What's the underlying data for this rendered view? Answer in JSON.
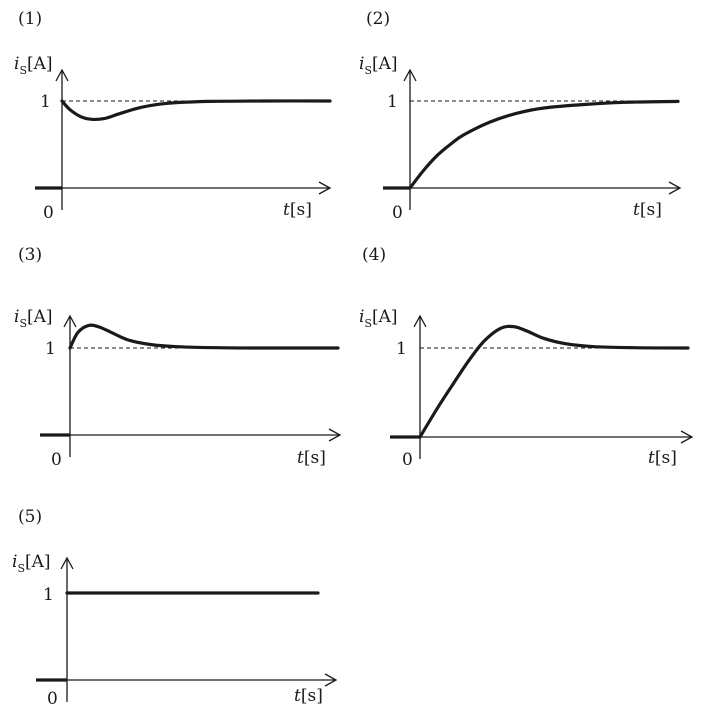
{
  "panels": [
    {
      "label": "(1)",
      "y_var": "i",
      "y_sub": "S",
      "y_unit": "[A]",
      "x_var": "t",
      "x_unit": "[s]",
      "origin_label": "0",
      "ref_label": "1",
      "ref_value": 1,
      "response": "starts at 1, dips below 1, then recovers to 1",
      "points": [
        [
          0,
          1.0
        ],
        [
          0.03,
          0.9
        ],
        [
          0.07,
          0.82
        ],
        [
          0.11,
          0.79
        ],
        [
          0.16,
          0.8
        ],
        [
          0.22,
          0.86
        ],
        [
          0.3,
          0.93
        ],
        [
          0.4,
          0.975
        ],
        [
          0.55,
          0.995
        ],
        [
          0.75,
          1.0
        ],
        [
          1.0,
          1.0
        ]
      ]
    },
    {
      "label": "(2)",
      "y_var": "i",
      "y_sub": "S",
      "y_unit": "[A]",
      "x_var": "t",
      "x_unit": "[s]",
      "origin_label": "0",
      "ref_label": "1",
      "ref_value": 1,
      "response": "rises from 0 and approaches 1 exponentially",
      "points": [
        [
          0,
          0
        ],
        [
          0.05,
          0.2
        ],
        [
          0.1,
          0.37
        ],
        [
          0.15,
          0.5
        ],
        [
          0.2,
          0.61
        ],
        [
          0.3,
          0.76
        ],
        [
          0.4,
          0.86
        ],
        [
          0.5,
          0.92
        ],
        [
          0.65,
          0.96
        ],
        [
          0.8,
          0.985
        ],
        [
          1.0,
          0.995
        ]
      ]
    },
    {
      "label": "(3)",
      "y_var": "i",
      "y_sub": "S",
      "y_unit": "[A]",
      "x_var": "t",
      "x_unit": "[s]",
      "origin_label": "0",
      "ref_label": "1",
      "ref_value": 1,
      "response": "jumps to 1, overshoots above 1, then settles to 1",
      "points": [
        [
          0,
          1.0
        ],
        [
          0.03,
          1.18
        ],
        [
          0.07,
          1.26
        ],
        [
          0.11,
          1.24
        ],
        [
          0.16,
          1.17
        ],
        [
          0.22,
          1.09
        ],
        [
          0.3,
          1.04
        ],
        [
          0.4,
          1.015
        ],
        [
          0.55,
          1.003
        ],
        [
          0.75,
          1.0
        ],
        [
          1.0,
          1.0
        ]
      ]
    },
    {
      "label": "(4)",
      "y_var": "i",
      "y_sub": "S",
      "y_unit": "[A]",
      "x_var": "t",
      "x_unit": "[s]",
      "origin_label": "0",
      "ref_label": "1",
      "ref_value": 1,
      "response": "rises from 0, overshoots above 1, then settles to 1",
      "points": [
        [
          0,
          0
        ],
        [
          0.06,
          0.3
        ],
        [
          0.12,
          0.58
        ],
        [
          0.18,
          0.85
        ],
        [
          0.24,
          1.08
        ],
        [
          0.3,
          1.22
        ],
        [
          0.35,
          1.24
        ],
        [
          0.4,
          1.19
        ],
        [
          0.46,
          1.11
        ],
        [
          0.54,
          1.05
        ],
        [
          0.65,
          1.015
        ],
        [
          0.8,
          1.003
        ],
        [
          1.0,
          1.0
        ]
      ]
    },
    {
      "label": "(5)",
      "y_var": "i",
      "y_sub": "S",
      "y_unit": "[A]",
      "x_var": "t",
      "x_unit": "[s]",
      "origin_label": "0",
      "ref_label": "1",
      "ref_value": 1,
      "response": "steps instantly to 1 and stays constant",
      "points": [
        [
          0,
          1.0
        ],
        [
          1.0,
          1.0
        ]
      ]
    }
  ]
}
